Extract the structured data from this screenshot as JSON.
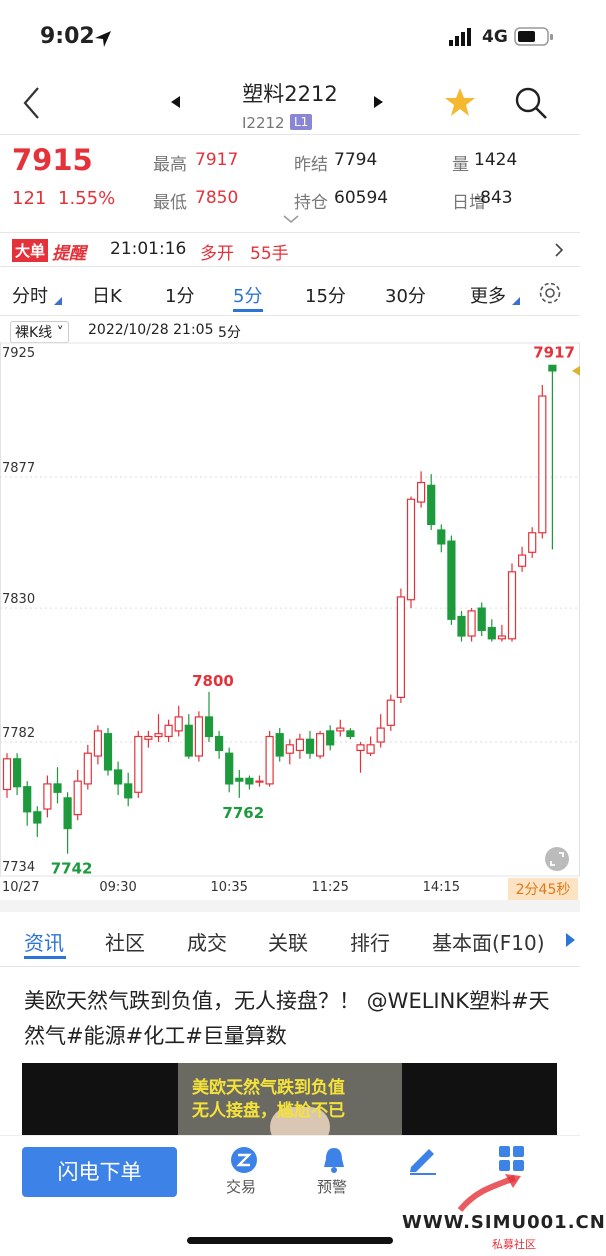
{
  "status_bar": {
    "time": "9:02",
    "network": "4G"
  },
  "header": {
    "title": "塑料2212",
    "code": "I2212",
    "badge": "L1"
  },
  "quote": {
    "last": "7915",
    "change": "121",
    "change_pct": "1.55%",
    "fields": [
      {
        "label": "最高",
        "value": "7917"
      },
      {
        "label": "昨结",
        "value": "7794"
      },
      {
        "label": "量",
        "value": "1424"
      },
      {
        "label": "最低",
        "value": "7850"
      },
      {
        "label": "持仓",
        "value": "60594"
      },
      {
        "label": "日增",
        "value": "-843"
      }
    ]
  },
  "alert": {
    "badge": "大单",
    "label": "提醒",
    "time": "21:01:16",
    "action": "多开",
    "amount": "55手"
  },
  "period_tabs": [
    "分时",
    "日K",
    "1分",
    "5分",
    "15分",
    "30分",
    "更多"
  ],
  "chart_info": {
    "mode": "裸K线",
    "datetime": "2022/10/28 21:05",
    "period": "5分"
  },
  "chart_data": {
    "type": "candlestick",
    "categories": [
      "10/27",
      null,
      null,
      null,
      null,
      null,
      null,
      null,
      null,
      null,
      null,
      "09:30",
      null,
      null,
      null,
      null,
      null,
      null,
      null,
      null,
      null,
      null,
      "10:35",
      null,
      null,
      null,
      null,
      null,
      null,
      null,
      null,
      null,
      "11:25",
      null,
      null,
      null,
      null,
      null,
      null,
      null,
      null,
      null,
      null,
      "14:15",
      null,
      null,
      null,
      null,
      null,
      null,
      null,
      null,
      null,
      null,
      null
    ],
    "open": [
      7765,
      7776,
      7766,
      7757,
      7758,
      7767,
      7762,
      7756,
      7767,
      7777,
      7785,
      7772,
      7767,
      7764,
      7783,
      7784,
      7784,
      7786,
      7788,
      7777,
      7791,
      7784,
      7778,
      7769,
      7769,
      7768,
      7767,
      7785,
      7778,
      7779,
      7783,
      7777,
      7786,
      7786,
      7786,
      7779,
      7778,
      7782,
      7788,
      7798,
      7833,
      7868,
      7874,
      7858,
      7854,
      7827,
      7820,
      7830,
      7823,
      7819,
      7819,
      7845,
      7850,
      7857,
      7917
    ],
    "close": [
      7776,
      7766,
      7757,
      7753,
      7767,
      7764,
      7751,
      7768,
      7778,
      7786,
      7772,
      7767,
      7762,
      7784,
      7784,
      7785,
      7788,
      7791,
      7777,
      7791,
      7784,
      7779,
      7767,
      7768,
      7767,
      7768,
      7784,
      7777,
      7781,
      7783,
      7778,
      7785,
      7781,
      7787,
      7784,
      7781,
      7781,
      7787,
      7797,
      7834,
      7869,
      7875,
      7860,
      7853,
      7826,
      7820,
      7829,
      7822,
      7819,
      7820,
      7843,
      7849,
      7857,
      7906,
      7915
    ],
    "high": [
      7778,
      7778,
      7768,
      7759,
      7770,
      7773,
      7764,
      7772,
      7781,
      7788,
      7787,
      7775,
      7771,
      7786,
      7786,
      7792,
      7790,
      7795,
      7792,
      7793,
      7800,
      7786,
      7780,
      7772,
      7770,
      7770,
      7786,
      7787,
      7783,
      7785,
      7786,
      7786,
      7788,
      7790,
      7787,
      7782,
      7784,
      7792,
      7799,
      7837,
      7870,
      7879,
      7878,
      7860,
      7856,
      7829,
      7830,
      7832,
      7826,
      7824,
      7846,
      7852,
      7859,
      7910,
      7917
    ],
    "low": [
      7762,
      7763,
      7752,
      7748,
      7755,
      7760,
      7742,
      7754,
      7765,
      7774,
      7770,
      7763,
      7759,
      7762,
      7780,
      7782,
      7782,
      7784,
      7776,
      7775,
      7782,
      7776,
      7764,
      7762,
      7765,
      7766,
      7766,
      7775,
      7774,
      7776,
      7776,
      7776,
      7779,
      7784,
      7783,
      7771,
      7777,
      7780,
      7786,
      7796,
      7830,
      7866,
      7858,
      7850,
      7824,
      7818,
      7818,
      7820,
      7818,
      7818,
      7818,
      7843,
      7848,
      7855,
      7851
    ],
    "up_color": "#e5323a",
    "down_color": "#1c9a3c",
    "ylim": [
      7734,
      7925
    ],
    "yticks": [
      7734,
      7782,
      7830,
      7877,
      7925
    ],
    "grid": true,
    "countdown": "2分45秒"
  },
  "news_tabs": [
    "资讯",
    "社区",
    "成交",
    "关联",
    "排行",
    "基本面(F10)"
  ],
  "news": {
    "title": "美欧天然气跌到负值，无人接盘？！ @WELINK塑料#天然气#能源#化工#巨量算数",
    "thumb_lines": [
      "美欧天然气跌到负值",
      "无人接盘，尴尬不已"
    ]
  },
  "bottom_bar": {
    "button": "闪电下单",
    "items": [
      "交易",
      "预警"
    ]
  },
  "watermark": {
    "site": "WWW.SIMU001.CN",
    "caption": "私募社区"
  }
}
